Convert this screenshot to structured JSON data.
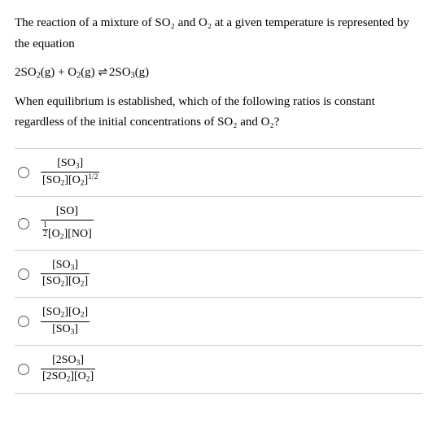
{
  "question": {
    "intro": "The reaction of a mixture of SO₂ and O₂ at a given temperature is represented by the equation",
    "equation_lhs": "2SO₂(g) + O₂(g)",
    "equation_rhs": "2SO₃(g)",
    "prompt": "When equilibrium is established, which of the following ratios is constant regardless of the initial concentrations of SO₂ and O₂?"
  },
  "options": [
    {
      "num": "[SO₃]",
      "den": "[SO₂][O₂]^(1/2)"
    },
    {
      "num": "[SO]",
      "den": "(1/2)[O₂][NO]"
    },
    {
      "num": "[SO₃]",
      "den": "[SO₂][O₂]"
    },
    {
      "num": "[SO₂][O₂]",
      "den": "[SO₃]"
    },
    {
      "num": "[2SO₃]",
      "den": "[2SO₂][O₂]"
    }
  ],
  "styling": {
    "background": "#ffffff",
    "text_color": "#000000",
    "divider_color": "#d0d0d0",
    "font_family": "Georgia, serif",
    "body_fontsize": 15,
    "option_fontsize": 14
  }
}
